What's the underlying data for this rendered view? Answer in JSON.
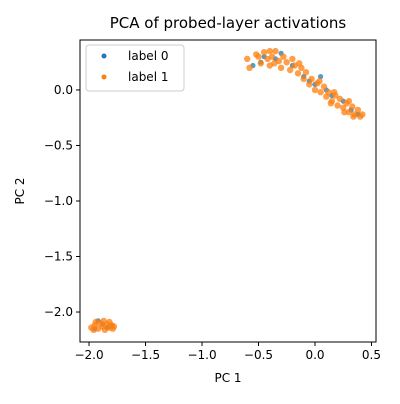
{
  "chart_data": {
    "type": "scatter",
    "title": "PCA of probed-layer activations",
    "xlabel": "PC 1",
    "ylabel": "PC 2",
    "xlim": [
      -2.08,
      0.54
    ],
    "ylim": [
      -2.27,
      0.45
    ],
    "xticks": [
      -2.0,
      -1.5,
      -1.0,
      -0.5,
      0.0,
      0.5
    ],
    "xtick_labels": [
      "−2.0",
      "−1.5",
      "−1.0",
      "−0.5",
      "0.0",
      "0.5"
    ],
    "yticks": [
      0.0,
      -0.5,
      -1.0,
      -1.5,
      -2.0
    ],
    "ytick_labels": [
      "0.0",
      "−0.5",
      "−1.0",
      "−1.5",
      "−2.0"
    ],
    "grid": false,
    "legend_position": "upper-left",
    "series": [
      {
        "name": "label 0",
        "color": "#1f77b4",
        "points": [
          [
            -0.55,
            0.22
          ],
          [
            -0.45,
            0.3
          ],
          [
            -0.35,
            0.28
          ],
          [
            -0.2,
            0.22
          ],
          [
            -0.1,
            0.12
          ],
          [
            0.0,
            0.05
          ],
          [
            0.05,
            0.12
          ],
          [
            0.15,
            -0.05
          ],
          [
            0.25,
            -0.1
          ],
          [
            0.32,
            -0.18
          ],
          [
            0.38,
            -0.22
          ],
          [
            -0.3,
            0.33
          ],
          [
            -0.48,
            0.25
          ],
          [
            0.1,
            0.0
          ],
          [
            -0.05,
            0.08
          ],
          [
            -1.92,
            -2.08
          ],
          [
            -1.8,
            -2.12
          ],
          [
            -1.95,
            -2.15
          ],
          [
            -1.88,
            -2.11
          ],
          [
            -1.84,
            -2.14
          ]
        ]
      },
      {
        "name": "label 1",
        "color": "#ff7f0e",
        "points": [
          [
            -0.6,
            0.28
          ],
          [
            -0.58,
            0.2
          ],
          [
            -0.52,
            0.32
          ],
          [
            -0.48,
            0.24
          ],
          [
            -0.45,
            0.34
          ],
          [
            -0.42,
            0.28
          ],
          [
            -0.4,
            0.22
          ],
          [
            -0.38,
            0.3
          ],
          [
            -0.35,
            0.35
          ],
          [
            -0.32,
            0.26
          ],
          [
            -0.3,
            0.2
          ],
          [
            -0.28,
            0.3
          ],
          [
            -0.25,
            0.25
          ],
          [
            -0.22,
            0.18
          ],
          [
            -0.2,
            0.28
          ],
          [
            -0.18,
            0.22
          ],
          [
            -0.15,
            0.15
          ],
          [
            -0.12,
            0.2
          ],
          [
            -0.1,
            0.1
          ],
          [
            -0.08,
            0.16
          ],
          [
            -0.05,
            0.05
          ],
          [
            -0.03,
            0.1
          ],
          [
            0.0,
            0.0
          ],
          [
            0.02,
            0.06
          ],
          [
            0.05,
            -0.02
          ],
          [
            0.08,
            0.03
          ],
          [
            0.1,
            -0.06
          ],
          [
            0.12,
            -0.02
          ],
          [
            0.15,
            -0.1
          ],
          [
            0.18,
            -0.05
          ],
          [
            0.2,
            -0.14
          ],
          [
            0.22,
            -0.08
          ],
          [
            0.25,
            -0.16
          ],
          [
            0.28,
            -0.12
          ],
          [
            0.3,
            -0.2
          ],
          [
            0.33,
            -0.15
          ],
          [
            0.35,
            -0.22
          ],
          [
            0.38,
            -0.18
          ],
          [
            0.4,
            -0.24
          ],
          [
            0.42,
            -0.22
          ],
          [
            0.3,
            -0.1
          ],
          [
            0.26,
            -0.2
          ],
          [
            0.14,
            -0.12
          ],
          [
            0.04,
            0.08
          ],
          [
            -0.14,
            0.24
          ],
          [
            -0.36,
            0.24
          ],
          [
            -0.5,
            0.3
          ],
          [
            -0.4,
            0.35
          ],
          [
            0.17,
            -0.02
          ],
          [
            0.34,
            -0.24
          ],
          [
            -1.98,
            -2.14
          ],
          [
            -1.95,
            -2.12
          ],
          [
            -1.92,
            -2.15
          ],
          [
            -1.9,
            -2.1
          ],
          [
            -1.88,
            -2.13
          ],
          [
            -1.86,
            -2.16
          ],
          [
            -1.84,
            -2.11
          ],
          [
            -1.82,
            -2.14
          ],
          [
            -1.8,
            -2.12
          ],
          [
            -1.78,
            -2.13
          ],
          [
            -1.94,
            -2.09
          ],
          [
            -1.87,
            -2.08
          ],
          [
            -1.82,
            -2.09
          ],
          [
            -1.96,
            -2.16
          ],
          [
            -1.79,
            -2.15
          ]
        ]
      }
    ]
  }
}
